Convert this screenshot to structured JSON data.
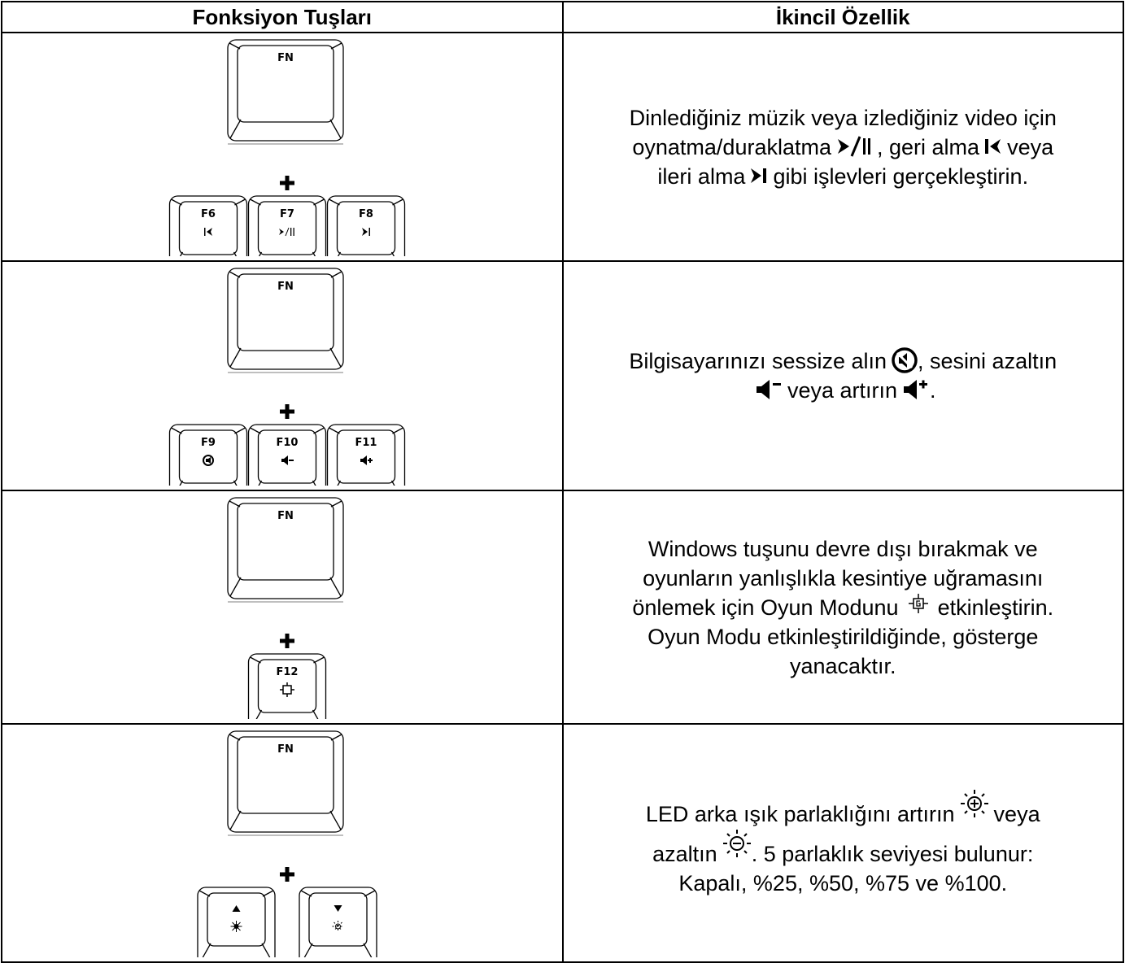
{
  "table": {
    "headers": [
      "Fonksiyon Tuşları",
      "İkincil Özellik"
    ],
    "rows": [
      {
        "main_key": "FN",
        "sub_keys": [
          "F6",
          "F7",
          "F8"
        ],
        "description": [
          [
            "Dinlediğiniz müzik veya izlediğiniz video için"
          ],
          [
            "oynatma/duraklatma",
            ", geri alma",
            "veya"
          ],
          [
            "ileri alma",
            "gibi işlevleri gerçekleştirin."
          ]
        ]
      },
      {
        "main_key": "FN",
        "sub_keys": [
          "F9",
          "F10",
          "F11"
        ],
        "description": [
          [
            "Bilgisayarınızı sessize alın",
            ", sesini azaltın"
          ],
          [
            "veya artırın",
            "."
          ]
        ]
      },
      {
        "main_key": "FN",
        "sub_keys": [
          "F12"
        ],
        "description": [
          [
            "Windows tuşunu devre dışı bırakmak ve"
          ],
          [
            "oyunların yanlışlıkla kesintiye uğramasını"
          ],
          [
            "önlemek için Oyun Modunu",
            "etkinleştirin."
          ],
          [
            "Oyun Modu etkinleştirildiğinde, gösterge"
          ],
          [
            "yanacaktır."
          ]
        ]
      },
      {
        "main_key": "FN",
        "description": [
          [
            "LED arka ışık parlaklığını artırın",
            "veya"
          ],
          [
            "azaltın",
            ". 5 parlaklık seviyesi bulunur:"
          ],
          [
            "Kapalı, %25, %50, %75 ve %100."
          ]
        ]
      }
    ]
  }
}
